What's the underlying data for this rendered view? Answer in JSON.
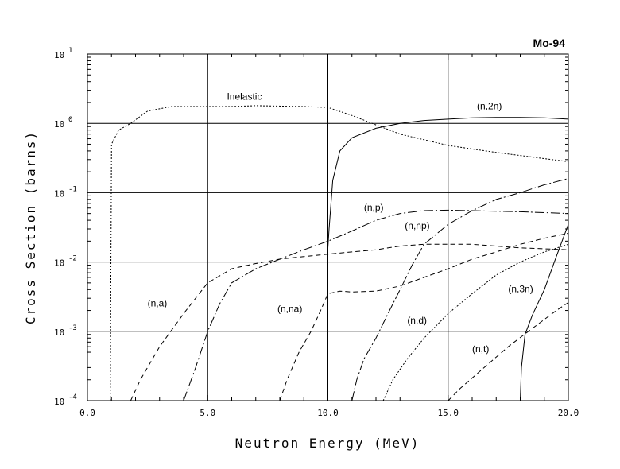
{
  "chart_data": {
    "type": "line",
    "title": "Mo-94",
    "xlabel": "Neutron Energy (MeV)",
    "ylabel": "Cross Section (barns)",
    "xlim": [
      0,
      20
    ],
    "ylim": [
      0.0001,
      10
    ],
    "yscale": "log",
    "grid": true,
    "x_ticks": [
      "0.0",
      "5.0",
      "10.0",
      "15.0",
      "20.0"
    ],
    "y_ticks": [
      {
        "base": "10",
        "exp": "1",
        "value": 10
      },
      {
        "base": "10",
        "exp": "0",
        "value": 1
      },
      {
        "base": "10",
        "exp": "-1",
        "value": 0.1
      },
      {
        "base": "10",
        "exp": "-2",
        "value": 0.01
      },
      {
        "base": "10",
        "exp": "-3",
        "value": 0.001
      },
      {
        "base": "10",
        "exp": "-4",
        "value": 0.0001
      }
    ],
    "series": [
      {
        "name": "Inelastic",
        "dash": "2,2",
        "label_pos": [
          5.8,
          2.2
        ],
        "points": [
          [
            0.95,
            0.0001
          ],
          [
            1.0,
            0.5
          ],
          [
            1.3,
            0.8
          ],
          [
            1.8,
            1.0
          ],
          [
            2.5,
            1.5
          ],
          [
            3.5,
            1.75
          ],
          [
            6.0,
            1.75
          ],
          [
            7.0,
            1.8
          ],
          [
            9.0,
            1.75
          ],
          [
            10.0,
            1.7
          ],
          [
            11.0,
            1.3
          ],
          [
            12.0,
            0.95
          ],
          [
            13.0,
            0.7
          ],
          [
            15.0,
            0.48
          ],
          [
            17.0,
            0.38
          ],
          [
            20.0,
            0.28
          ]
        ]
      },
      {
        "name": "(n,2n)",
        "dash": "",
        "label_pos": [
          16.2,
          1.6
        ],
        "points": [
          [
            10.0,
            0.016
          ],
          [
            10.05,
            0.03
          ],
          [
            10.2,
            0.15
          ],
          [
            10.5,
            0.4
          ],
          [
            11.0,
            0.62
          ],
          [
            12.0,
            0.85
          ],
          [
            13.0,
            1.0
          ],
          [
            14.0,
            1.1
          ],
          [
            15.0,
            1.15
          ],
          [
            16.0,
            1.2
          ],
          [
            17.0,
            1.22
          ],
          [
            18.0,
            1.22
          ],
          [
            19.0,
            1.2
          ],
          [
            20.0,
            1.15
          ]
        ]
      },
      {
        "name": "(n,p)",
        "dash": "12,3,2,3",
        "label_pos": [
          11.5,
          0.055
        ],
        "points": [
          [
            4.0,
            0.0001
          ],
          [
            4.5,
            0.0003
          ],
          [
            5.0,
            0.001
          ],
          [
            5.5,
            0.0025
          ],
          [
            6.0,
            0.005
          ],
          [
            7.0,
            0.008
          ],
          [
            8.0,
            0.011
          ],
          [
            9.0,
            0.015
          ],
          [
            10.0,
            0.02
          ],
          [
            11.0,
            0.028
          ],
          [
            12.0,
            0.04
          ],
          [
            13.0,
            0.05
          ],
          [
            14.0,
            0.055
          ],
          [
            15.0,
            0.056
          ],
          [
            16.0,
            0.055
          ],
          [
            18.0,
            0.053
          ],
          [
            20.0,
            0.05
          ]
        ]
      },
      {
        "name": "(n,a)",
        "dash": "6,4",
        "label_pos": [
          2.5,
          0.0023
        ],
        "points": [
          [
            1.8,
            0.0001
          ],
          [
            2.2,
            0.0002
          ],
          [
            3.0,
            0.0006
          ],
          [
            4.0,
            0.0018
          ],
          [
            5.0,
            0.005
          ],
          [
            6.0,
            0.008
          ],
          [
            7.0,
            0.0095
          ],
          [
            8.0,
            0.011
          ],
          [
            9.0,
            0.012
          ],
          [
            10.0,
            0.013
          ],
          [
            11.0,
            0.014
          ],
          [
            12.0,
            0.015
          ],
          [
            13.0,
            0.017
          ],
          [
            14.0,
            0.018
          ],
          [
            16.0,
            0.018
          ],
          [
            18.0,
            0.016
          ],
          [
            20.0,
            0.015
          ]
        ]
      },
      {
        "name": "(n,np)",
        "dash": "12,3,2,3",
        "label_pos": [
          13.2,
          0.03
        ],
        "points": [
          [
            11.0,
            0.0001
          ],
          [
            11.2,
            0.0002
          ],
          [
            11.5,
            0.0004
          ],
          [
            12.0,
            0.0008
          ],
          [
            12.5,
            0.0018
          ],
          [
            13.0,
            0.004
          ],
          [
            13.5,
            0.009
          ],
          [
            14.0,
            0.018
          ],
          [
            15.0,
            0.035
          ],
          [
            16.0,
            0.055
          ],
          [
            17.0,
            0.08
          ],
          [
            18.0,
            0.1
          ],
          [
            19.0,
            0.13
          ],
          [
            20.0,
            0.16
          ]
        ]
      },
      {
        "name": "(n,na)",
        "dash": "6,4",
        "label_pos": [
          7.9,
          0.0019
        ],
        "points": [
          [
            8.0,
            0.0001
          ],
          [
            8.3,
            0.0002
          ],
          [
            8.8,
            0.0005
          ],
          [
            9.3,
            0.001
          ],
          [
            9.7,
            0.002
          ],
          [
            10.0,
            0.0035
          ],
          [
            10.5,
            0.0038
          ],
          [
            11.0,
            0.0037
          ],
          [
            12.0,
            0.0038
          ],
          [
            13.0,
            0.0045
          ],
          [
            14.0,
            0.006
          ],
          [
            15.0,
            0.008
          ],
          [
            16.0,
            0.011
          ],
          [
            17.0,
            0.014
          ],
          [
            18.0,
            0.018
          ],
          [
            19.0,
            0.022
          ],
          [
            20.0,
            0.026
          ]
        ]
      },
      {
        "name": "(n,d)",
        "dash": "2,2",
        "label_pos": [
          13.3,
          0.0013
        ],
        "points": [
          [
            12.3,
            0.0001
          ],
          [
            12.7,
            0.0002
          ],
          [
            13.3,
            0.0004
          ],
          [
            14.0,
            0.0008
          ],
          [
            15.0,
            0.0018
          ],
          [
            16.0,
            0.0035
          ],
          [
            17.0,
            0.0065
          ],
          [
            18.0,
            0.01
          ],
          [
            19.0,
            0.014
          ],
          [
            20.0,
            0.018
          ]
        ]
      },
      {
        "name": "(n,3n)",
        "dash": "",
        "label_pos": [
          17.5,
          0.0037
        ],
        "points": [
          [
            18.0,
            0.0001
          ],
          [
            18.05,
            0.0003
          ],
          [
            18.2,
            0.0009
          ],
          [
            18.5,
            0.0017
          ],
          [
            19.0,
            0.004
          ],
          [
            19.5,
            0.012
          ],
          [
            20.0,
            0.035
          ]
        ]
      },
      {
        "name": "(n,t)",
        "dash": "6,4",
        "label_pos": [
          16.0,
          0.0005
        ],
        "points": [
          [
            15.0,
            0.0001
          ],
          [
            15.5,
            0.00015
          ],
          [
            16.5,
            0.0003
          ],
          [
            17.5,
            0.0006
          ],
          [
            18.5,
            0.0011
          ],
          [
            19.5,
            0.002
          ],
          [
            20.0,
            0.0026
          ]
        ]
      }
    ]
  }
}
